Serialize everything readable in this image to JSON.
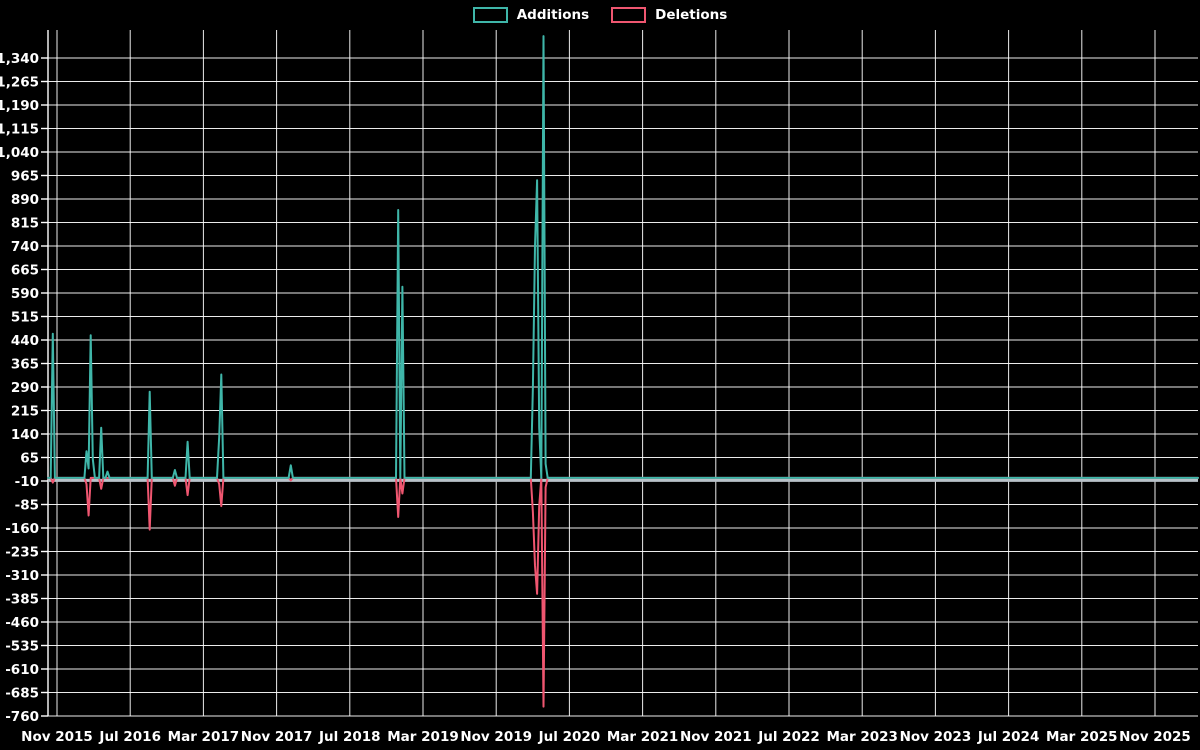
{
  "chart_data": {
    "type": "line",
    "title": "",
    "subtitle": "",
    "legend_position": "top-center",
    "grid": true,
    "background_color": "#000000",
    "grid_color": "#ffffff",
    "axis_text_color": "#ffffff",
    "zero_line_color": "#b9c2c9",
    "granularity": "weekly",
    "x_axis": {
      "start_tick": "Nov 2015",
      "months_per_tick": 8,
      "tick_labels": [
        "Nov 2015",
        "Jul 2016",
        "Mar 2017",
        "Nov 2017",
        "Jul 2018",
        "Mar 2019",
        "Nov 2019",
        "Jul 2020",
        "Mar 2021",
        "Nov 2021",
        "Jul 2022",
        "Mar 2023",
        "Nov 2023",
        "Jul 2024",
        "Mar 2025",
        "Nov 2025"
      ]
    },
    "y_axis": {
      "min": -760,
      "max": 1340,
      "step": 75,
      "tick_labels": [
        "-760",
        "-685",
        "-610",
        "-535",
        "-460",
        "-385",
        "-310",
        "-235",
        "-160",
        "-85",
        "-10",
        "65",
        "140",
        "215",
        "290",
        "365",
        "440",
        "515",
        "590",
        "665",
        "740",
        "815",
        "890",
        "965",
        "1,040",
        "1,115",
        "1,190",
        "1,265",
        "1,340"
      ]
    },
    "series": [
      {
        "name": "Additions",
        "color": "#3fb6a9",
        "baseline": 0,
        "points": [
          {
            "date": "2015-10-18",
            "value": 460
          },
          {
            "date": "2016-02-07",
            "value": 85
          },
          {
            "date": "2016-02-14",
            "value": 30
          },
          {
            "date": "2016-02-21",
            "value": 455
          },
          {
            "date": "2016-02-28",
            "value": 60
          },
          {
            "date": "2016-03-27",
            "value": 160
          },
          {
            "date": "2016-04-17",
            "value": 20
          },
          {
            "date": "2016-09-04",
            "value": 275
          },
          {
            "date": "2016-11-27",
            "value": 25
          },
          {
            "date": "2017-01-08",
            "value": 115
          },
          {
            "date": "2017-04-23",
            "value": 130
          },
          {
            "date": "2017-04-30",
            "value": 330
          },
          {
            "date": "2017-12-17",
            "value": 40
          },
          {
            "date": "2018-12-09",
            "value": 855
          },
          {
            "date": "2018-12-23",
            "value": 610
          },
          {
            "date": "2020-03-01",
            "value": 290
          },
          {
            "date": "2020-03-08",
            "value": 740
          },
          {
            "date": "2020-03-15",
            "value": 950
          },
          {
            "date": "2020-03-22",
            "value": 160
          },
          {
            "date": "2020-04-05",
            "value": 1410
          },
          {
            "date": "2020-04-12",
            "value": 45
          }
        ]
      },
      {
        "name": "Deletions",
        "color": "#ef5670",
        "baseline": 0,
        "points": [
          {
            "date": "2015-10-18",
            "value": -15
          },
          {
            "date": "2016-02-07",
            "value": -20
          },
          {
            "date": "2016-02-14",
            "value": -120
          },
          {
            "date": "2016-03-27",
            "value": -35
          },
          {
            "date": "2016-09-04",
            "value": -165
          },
          {
            "date": "2016-11-27",
            "value": -25
          },
          {
            "date": "2017-01-08",
            "value": -55
          },
          {
            "date": "2017-04-23",
            "value": -20
          },
          {
            "date": "2017-04-30",
            "value": -90
          },
          {
            "date": "2017-12-17",
            "value": -8
          },
          {
            "date": "2018-12-09",
            "value": -125
          },
          {
            "date": "2018-12-23",
            "value": -50
          },
          {
            "date": "2020-03-01",
            "value": -110
          },
          {
            "date": "2020-03-08",
            "value": -280
          },
          {
            "date": "2020-03-15",
            "value": -370
          },
          {
            "date": "2020-03-22",
            "value": -90
          },
          {
            "date": "2020-04-05",
            "value": -730
          },
          {
            "date": "2020-04-12",
            "value": -30
          }
        ]
      }
    ]
  }
}
